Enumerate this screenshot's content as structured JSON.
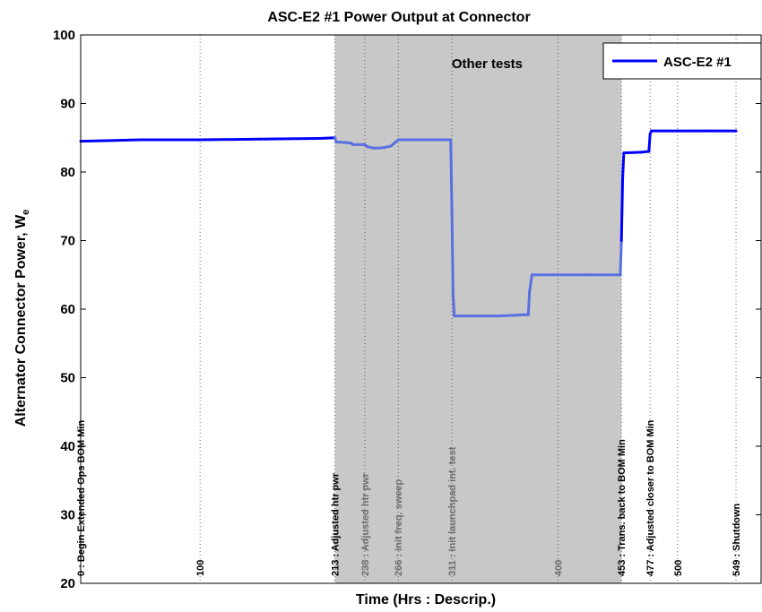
{
  "chart_data": {
    "type": "line",
    "title": "ASC-E2 #1 Power Output at Connector",
    "xlabel": "Time (Hrs : Descrip.)",
    "ylabel": "Alternator Connector Power, W",
    "ylabel_subscript": "e",
    "xlim": [
      0,
      570
    ],
    "ylim": [
      20,
      100
    ],
    "y_ticks": [
      "20",
      "30",
      "40",
      "50",
      "60",
      "70",
      "80",
      "90",
      "100"
    ],
    "grid": "vertical dotted lines at event markers",
    "legend": {
      "position": "top-right",
      "entries": [
        "ASC-E2 #1"
      ]
    },
    "shaded_region": {
      "x_start": 213,
      "x_end": 453,
      "label": "Other tests",
      "color": "#c8c8c8"
    },
    "event_markers": [
      {
        "x": 0,
        "label": "0 : Begin Extended Ops BOM Min"
      },
      {
        "x": 100,
        "label": "100"
      },
      {
        "x": 213,
        "label": "213 : Adjusted htr pwr"
      },
      {
        "x": 238,
        "label": "238 : Adjusted htr pwr"
      },
      {
        "x": 266,
        "label": "266 : Init freq. sweep"
      },
      {
        "x": 311,
        "label": "311 : Init launchpad int. test"
      },
      {
        "x": 400,
        "label": "400"
      },
      {
        "x": 453,
        "label": "453 : Trans. back to BOM Min"
      },
      {
        "x": 477,
        "label": "477 : Adjusted closer to BOM Min"
      },
      {
        "x": 500,
        "label": "500"
      },
      {
        "x": 549,
        "label": "549 : Shutdown"
      }
    ],
    "series": [
      {
        "name": "ASC-E2 #1",
        "color": "#0000ff",
        "shaded_color": "#5a6fe0",
        "x": [
          0,
          50,
          100,
          150,
          200,
          213,
          214,
          222,
          227,
          228,
          238,
          240,
          245,
          246,
          250,
          255,
          260,
          266,
          268,
          285,
          300,
          310,
          311,
          312,
          313,
          320,
          350,
          375,
          376,
          378,
          400,
          425,
          452,
          453,
          454,
          455,
          470,
          476,
          477,
          478,
          500,
          525,
          549
        ],
        "values": [
          84.5,
          84.7,
          84.7,
          84.8,
          84.9,
          85.0,
          84.4,
          84.3,
          84.2,
          84.0,
          84.0,
          83.7,
          83.5,
          83.5,
          83.5,
          83.6,
          83.8,
          84.7,
          84.7,
          84.7,
          84.7,
          84.7,
          74.0,
          62.0,
          59.0,
          59.0,
          59.0,
          59.2,
          62.5,
          65.0,
          65.0,
          65.0,
          65.0,
          70.0,
          79.0,
          82.8,
          82.9,
          83.0,
          85.5,
          86.0,
          86.0,
          86.0,
          86.0
        ]
      }
    ]
  }
}
